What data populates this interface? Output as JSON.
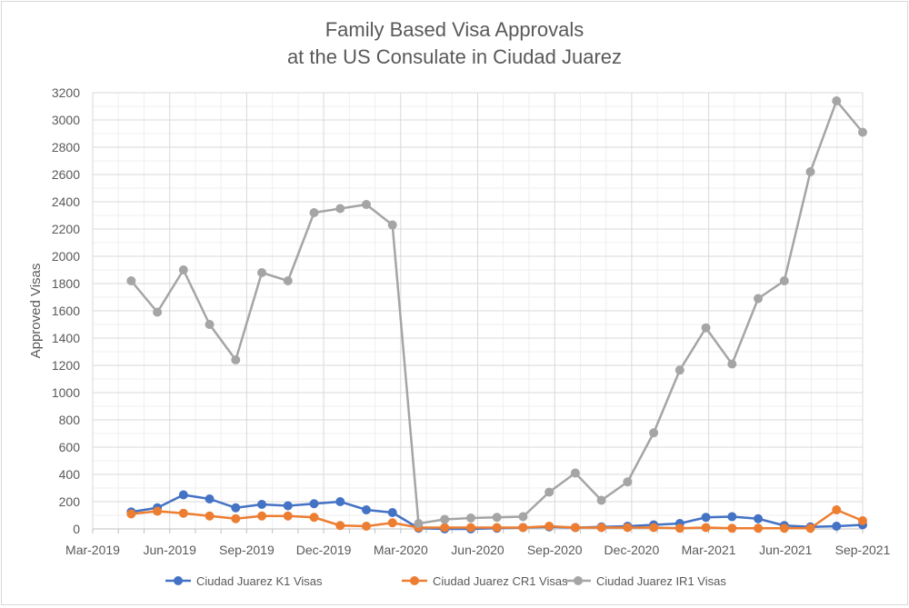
{
  "chart_data": {
    "type": "line",
    "title": [
      "Family Based Visa Approvals",
      "at the US Consulate in Ciudad Juarez"
    ],
    "xlabel": "",
    "ylabel": "Approved Visas",
    "ylim": [
      0,
      3200
    ],
    "yticks": [
      "0",
      "200",
      "400",
      "600",
      "800",
      "1000",
      "1200",
      "1400",
      "1600",
      "1800",
      "2000",
      "2200",
      "2400",
      "2600",
      "2800",
      "3000",
      "3200"
    ],
    "xlim": [
      "Mar-2019",
      "Sep-2021"
    ],
    "xticks": [
      "Mar-2019",
      "Jun-2019",
      "Sep-2019",
      "Dec-2019",
      "Mar-2020",
      "Jun-2020",
      "Sep-2020",
      "Dec-2020",
      "Mar-2021",
      "Jun-2021",
      "Sep-2021"
    ],
    "grid": true,
    "legend_position": "bottom",
    "x_months_since_mar_2019": {
      "start": 1.5,
      "end": 30
    },
    "series": [
      {
        "name": "Ciudad Juarez K1 Visas",
        "color": "#4472c4",
        "values": [
          125,
          155,
          250,
          220,
          155,
          180,
          170,
          185,
          200,
          140,
          120,
          5,
          0,
          0,
          5,
          10,
          15,
          10,
          15,
          20,
          30,
          40,
          85,
          90,
          75,
          25,
          15,
          20,
          30
        ]
      },
      {
        "name": "Ciudad Juarez CR1 Visas",
        "color": "#ed7d31",
        "values": [
          110,
          130,
          115,
          95,
          75,
          95,
          95,
          85,
          25,
          20,
          45,
          10,
          10,
          10,
          10,
          10,
          20,
          10,
          10,
          10,
          10,
          5,
          10,
          5,
          5,
          5,
          5,
          140,
          60
        ]
      },
      {
        "name": "Ciudad Juarez IR1 Visas",
        "color": "#a5a5a5",
        "values": [
          1820,
          1590,
          1900,
          1500,
          1240,
          1880,
          1820,
          2320,
          2350,
          2380,
          2230,
          40,
          70,
          80,
          85,
          90,
          270,
          410,
          210,
          345,
          705,
          1165,
          1475,
          1210,
          1690,
          1820,
          2620,
          3140,
          2910
        ]
      }
    ]
  }
}
